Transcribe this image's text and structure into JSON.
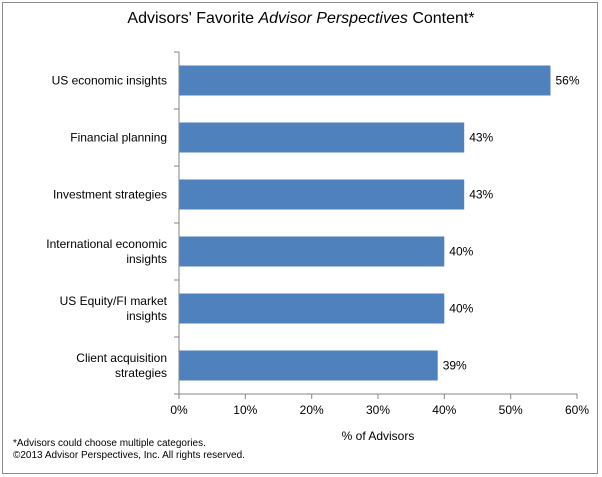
{
  "title": {
    "before": "Advisors' Favorite ",
    "italic": "Advisor Perspectives",
    "after": " Content*"
  },
  "chart_data": {
    "type": "bar",
    "orientation": "horizontal",
    "categories": [
      "US economic insights",
      "Financial planning",
      "Investment strategies",
      "International economic insights",
      "US Equity/FI market insights",
      "Client acquisition strategies"
    ],
    "category_lines": [
      [
        "US economic insights"
      ],
      [
        "Financial planning"
      ],
      [
        "Investment strategies"
      ],
      [
        "International economic",
        "insights"
      ],
      [
        "US Equity/FI market",
        "insights"
      ],
      [
        "Client acquisition",
        "strategies"
      ]
    ],
    "values": [
      56,
      43,
      43,
      40,
      40,
      39
    ],
    "data_labels": [
      "56%",
      "43%",
      "43%",
      "40%",
      "40%",
      "39%"
    ],
    "xlim": [
      0,
      60
    ],
    "xticks": [
      0,
      10,
      20,
      30,
      40,
      50,
      60
    ],
    "xtick_labels": [
      "0%",
      "10%",
      "20%",
      "30%",
      "40%",
      "50%",
      "60%"
    ],
    "xlabel": "% of Advisors",
    "grid": false,
    "bar_color": "#4f81bd"
  },
  "footer": {
    "note": "*Advisors could choose multiple categories.",
    "copyright": "©2013 Advisor Perspectives, Inc. All rights reserved."
  }
}
